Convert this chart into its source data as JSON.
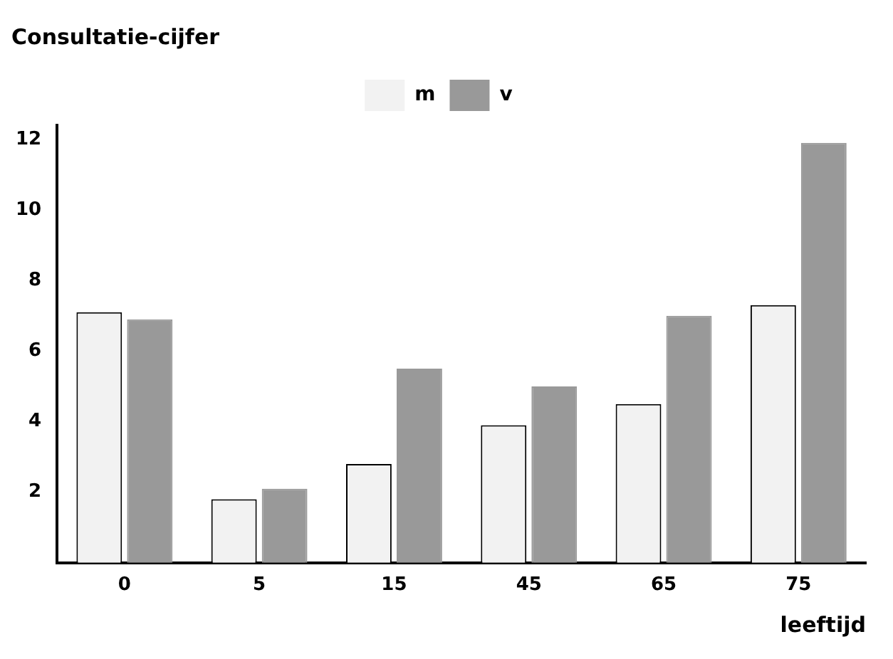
{
  "chart_data": {
    "type": "bar",
    "title": "Consultatie-cijfer",
    "xlabel": "leeftijd",
    "categories": [
      "0",
      "5",
      "15",
      "45",
      "65",
      "75"
    ],
    "series": [
      {
        "name": "m",
        "color": "#f2f2f2",
        "values": [
          7.1,
          1.8,
          2.8,
          3.9,
          4.5,
          7.3
        ]
      },
      {
        "name": "v",
        "color": "#999999",
        "values": [
          6.9,
          2.1,
          5.5,
          5.0,
          7.0,
          11.9
        ]
      }
    ],
    "ylim": [
      0,
      12.4
    ],
    "yticks": [
      2,
      4,
      6,
      8,
      10,
      12
    ],
    "grid": false,
    "legend": "top"
  }
}
